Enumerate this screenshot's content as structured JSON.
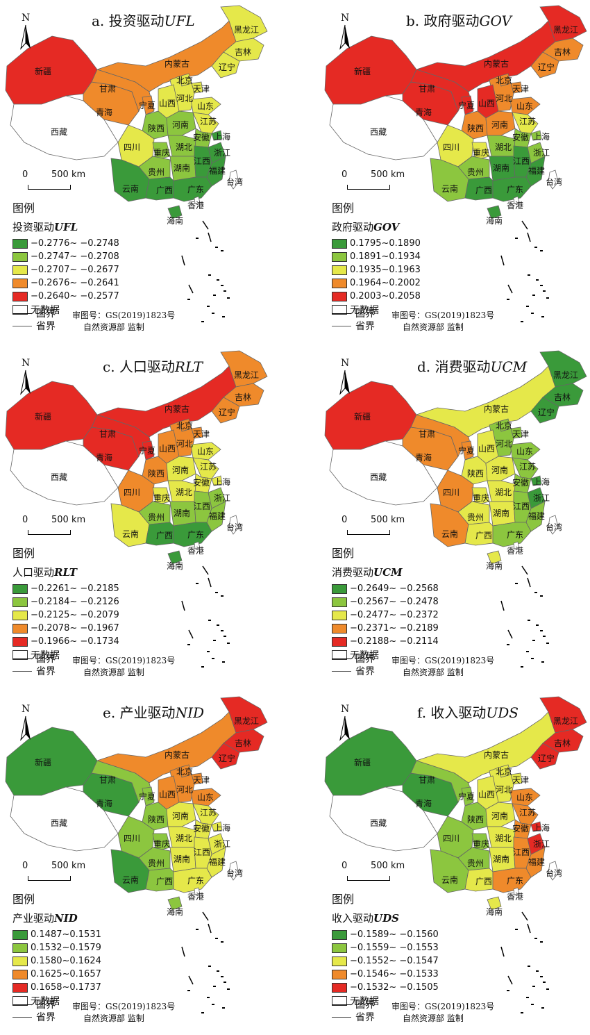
{
  "common": {
    "north_letter": "N",
    "scale_zero": "0",
    "scale_distance": "500 km",
    "legend_heading": "图例",
    "no_data": "无数据",
    "national_border": "国界",
    "provincial_border": "省界",
    "review_no": "审图号：GS(2019)1823号",
    "supervisor": "自然资源部 监制",
    "palette": [
      "#3a9a3a",
      "#8cc63f",
      "#e5e84a",
      "#ef8a2b",
      "#e52a24",
      "#ffffff"
    ]
  },
  "panels": [
    {
      "title_prefix": "a. 投资驱动",
      "code": "UFL",
      "legend_prefix": "投资驱动",
      "classes": [
        "−0.2776~ −0.2748",
        "−0.2747~ −0.2708",
        "−0.2707~ −0.2677",
        "−0.2676~ −0.2641",
        "−0.2640~ −0.2577"
      ],
      "regions": {
        "新疆": 4,
        "西藏": 5,
        "青海": 3,
        "甘肃": 3,
        "宁夏": 3,
        "内蒙古": 3,
        "黑龙江": 2,
        "吉林": 2,
        "辽宁": 2,
        "北京": 2,
        "天津": 2,
        "河北": 2,
        "山西": 2,
        "山东": 2,
        "陕西": 1,
        "河南": 1,
        "江苏": 2,
        "安徽": 1,
        "上海": 0,
        "四川": 2,
        "重庆": 1,
        "湖北": 1,
        "浙江": 0,
        "贵州": 1,
        "湖南": 1,
        "江西": 0,
        "福建": 0,
        "云南": 0,
        "广西": 0,
        "广东": 0,
        "台湾": 5,
        "香港": 5,
        "海南": 0
      }
    },
    {
      "title_prefix": "b. 政府驱动",
      "code": "GOV",
      "legend_prefix": "政府驱动",
      "classes": [
        "0.1795~0.1890",
        "0.1891~0.1934",
        "0.1935~0.1963",
        "0.1964~0.2002",
        "0.2003~0.2058"
      ],
      "regions": {
        "新疆": 4,
        "西藏": 5,
        "青海": 4,
        "甘肃": 4,
        "宁夏": 4,
        "内蒙古": 4,
        "黑龙江": 4,
        "吉林": 3,
        "辽宁": 3,
        "北京": 3,
        "天津": 3,
        "河北": 3,
        "山西": 4,
        "山东": 3,
        "陕西": 3,
        "河南": 3,
        "江苏": 2,
        "安徽": 1,
        "上海": 1,
        "四川": 2,
        "重庆": 2,
        "湖北": 1,
        "浙江": 1,
        "贵州": 1,
        "湖南": 0,
        "江西": 0,
        "福建": 0,
        "云南": 1,
        "广西": 0,
        "广东": 0,
        "台湾": 5,
        "香港": 5,
        "海南": 0
      }
    },
    {
      "title_prefix": "c. 人口驱动",
      "code": "RLT",
      "legend_prefix": "人口驱动",
      "classes": [
        "−0.2261~ −0.2185",
        "−0.2184~ −0.2126",
        "−0.2125~ −0.2079",
        "−0.2078~ −0.1967",
        "−0.1966~ −0.1734"
      ],
      "regions": {
        "新疆": 4,
        "西藏": 5,
        "青海": 4,
        "甘肃": 4,
        "宁夏": 4,
        "内蒙古": 4,
        "黑龙江": 3,
        "吉林": 3,
        "辽宁": 3,
        "北京": 3,
        "天津": 3,
        "河北": 3,
        "山西": 3,
        "山东": 2,
        "陕西": 3,
        "河南": 2,
        "江苏": 2,
        "安徽": 2,
        "上海": 2,
        "四川": 3,
        "重庆": 2,
        "湖北": 2,
        "浙江": 1,
        "贵州": 1,
        "湖南": 1,
        "江西": 1,
        "福建": 1,
        "云南": 2,
        "广西": 0,
        "广东": 0,
        "台湾": 5,
        "香港": 5,
        "海南": 0
      }
    },
    {
      "title_prefix": "d. 消费驱动",
      "code": "UCM",
      "legend_prefix": "消费驱动",
      "classes": [
        "−0.2649~ −0.2568",
        "−0.2567~ −0.2478",
        "−0.2477~ −0.2372",
        "−0.2371~ −0.2189",
        "−0.2188~ −0.2114"
      ],
      "regions": {
        "新疆": 4,
        "西藏": 5,
        "青海": 3,
        "甘肃": 3,
        "宁夏": 3,
        "内蒙古": 2,
        "黑龙江": 0,
        "吉林": 0,
        "辽宁": 0,
        "北京": 1,
        "天津": 1,
        "河北": 1,
        "山西": 2,
        "山东": 1,
        "陕西": 2,
        "河南": 2,
        "江苏": 1,
        "安徽": 1,
        "上海": 0,
        "四川": 3,
        "重庆": 2,
        "湖北": 2,
        "浙江": 0,
        "贵州": 2,
        "湖南": 2,
        "江西": 1,
        "福建": 1,
        "云南": 3,
        "广西": 2,
        "广东": 1,
        "台湾": 5,
        "香港": 5,
        "海南": 2
      }
    },
    {
      "title_prefix": "e. 产业驱动",
      "code": "NID",
      "legend_prefix": "产业驱动",
      "classes": [
        "0.1487~0.1531",
        "0.1532~0.1579",
        "0.1580~0.1624",
        "0.1625~0.1657",
        "0.1658~0.1737"
      ],
      "regions": {
        "新疆": 0,
        "西藏": 5,
        "青海": 0,
        "甘肃": 1,
        "宁夏": 1,
        "内蒙古": 3,
        "黑龙江": 4,
        "吉林": 4,
        "辽宁": 4,
        "北京": 3,
        "天津": 3,
        "河北": 3,
        "山西": 3,
        "山东": 3,
        "陕西": 1,
        "河南": 2,
        "江苏": 2,
        "安徽": 2,
        "上海": 2,
        "四川": 1,
        "重庆": 1,
        "湖北": 2,
        "浙江": 2,
        "贵州": 1,
        "湖南": 2,
        "江西": 2,
        "福建": 2,
        "云南": 0,
        "广西": 1,
        "广东": 2,
        "台湾": 5,
        "香港": 5,
        "海南": 1
      }
    },
    {
      "title_prefix": "f. 收入驱动",
      "code": "UDS",
      "legend_prefix": "收入驱动",
      "classes": [
        "−0.1589~ −0.1560",
        "−0.1559~ −0.1553",
        "−0.1552~ −0.1547",
        "−0.1546~ −0.1533",
        "−0.1532~ −0.1505"
      ],
      "regions": {
        "新疆": 0,
        "西藏": 5,
        "青海": 0,
        "甘肃": 1,
        "宁夏": 1,
        "内蒙古": 2,
        "黑龙江": 4,
        "吉林": 4,
        "辽宁": 4,
        "北京": 2,
        "天津": 2,
        "河北": 2,
        "山西": 2,
        "山东": 3,
        "陕西": 1,
        "河南": 2,
        "江苏": 3,
        "安徽": 3,
        "上海": 4,
        "四川": 1,
        "重庆": 1,
        "湖北": 2,
        "浙江": 4,
        "贵州": 1,
        "湖南": 2,
        "江西": 3,
        "福建": 3,
        "云南": 1,
        "广西": 2,
        "广东": 3,
        "台湾": 5,
        "香港": 5,
        "海南": 2
      }
    }
  ]
}
